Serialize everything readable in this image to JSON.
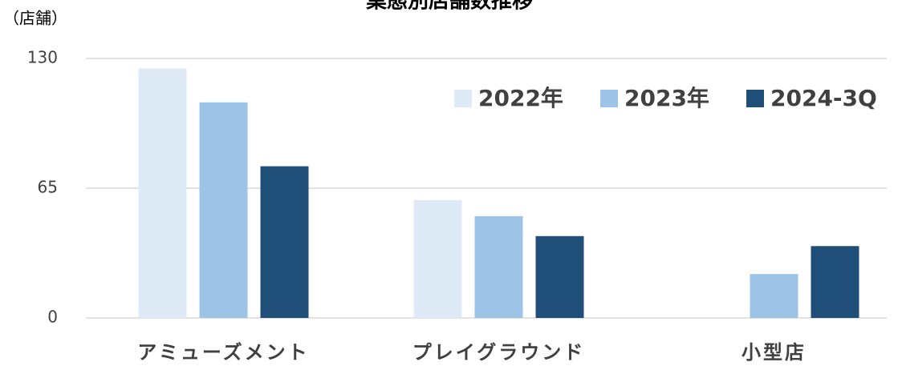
{
  "chart_data": {
    "type": "bar",
    "title": "業態別店舗数推移",
    "ylabel": "（店舗）",
    "categories": [
      "アミューズメント",
      "プレイグラウンド",
      "小型店"
    ],
    "series": [
      {
        "name": "2022年",
        "color": "#deebf7",
        "values": [
          125,
          59,
          0
        ]
      },
      {
        "name": "2023年",
        "color": "#9dc3e6",
        "values": [
          108,
          51,
          22
        ]
      },
      {
        "name": "2024-3Q",
        "color": "#1f4e79",
        "values": [
          76,
          41,
          36
        ]
      }
    ],
    "ylim": [
      0,
      130
    ],
    "yticks": [
      0,
      65,
      130
    ],
    "grid": true,
    "legend": "top-right"
  }
}
